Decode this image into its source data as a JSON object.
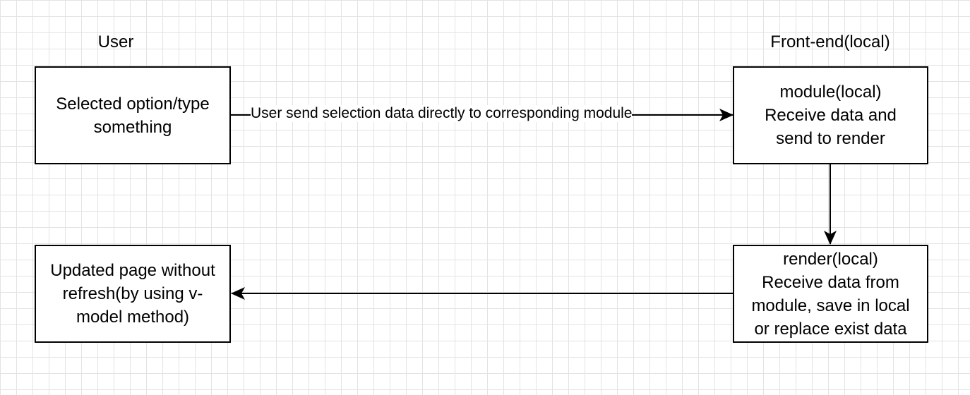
{
  "lanes": {
    "user": "User",
    "frontend": "Front-end(local)"
  },
  "nodes": {
    "select": "Selected option/type\nsomething",
    "module": "module(local)\nReceive data and\nsend to render",
    "render": "render(local)\nReceive data from\nmodule, save in local\nor replace exist data",
    "updated": "Updated page without\nrefresh(by using v-\nmodel method)"
  },
  "edges": {
    "select_to_module": "User send selection data directly to corresponding module"
  },
  "colors": {
    "stroke": "#000000",
    "background": "#ffffff",
    "grid": "#e3e3e3"
  }
}
